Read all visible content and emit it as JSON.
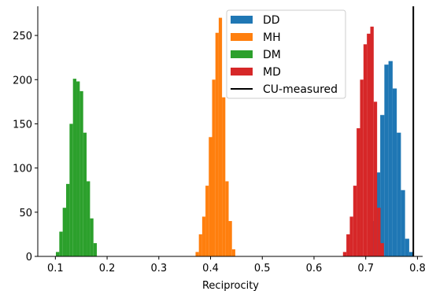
{
  "chart_data": {
    "type": "bar",
    "subtype": "histogram",
    "xlabel": "Reciprocity",
    "ylabel": "",
    "xlim": [
      0.066,
      0.81
    ],
    "ylim": [
      0,
      283
    ],
    "xticks": [
      "0.1",
      "0.2",
      "0.3",
      "0.4",
      "0.5",
      "0.6",
      "0.7",
      "0.8"
    ],
    "yticks": [
      "0",
      "50",
      "100",
      "150",
      "200",
      "250"
    ],
    "legend_position": "top-right",
    "series": [
      {
        "name": "DD",
        "color": "#1f77b4",
        "bin_start": 0.704,
        "bin_width": 0.008,
        "counts": [
          10,
          40,
          95,
          160,
          217,
          221,
          190,
          140,
          75,
          20,
          5
        ]
      },
      {
        "name": "MH",
        "color": "#ff7f0e",
        "bin_start": 0.371,
        "bin_width": 0.0064,
        "counts": [
          5,
          25,
          45,
          80,
          135,
          200,
          253,
          270,
          180,
          85,
          40,
          8
        ]
      },
      {
        "name": "DM",
        "color": "#2ca02c",
        "bin_start": 0.101,
        "bin_width": 0.0066,
        "counts": [
          5,
          28,
          55,
          82,
          150,
          201,
          198,
          187,
          140,
          85,
          43,
          15
        ]
      },
      {
        "name": "MD",
        "color": "#d62728",
        "bin_start": 0.656,
        "bin_width": 0.0066,
        "counts": [
          5,
          25,
          45,
          80,
          145,
          200,
          240,
          252,
          260,
          175,
          55,
          15
        ]
      },
      {
        "name": "CU-measured",
        "color": "#000000",
        "type": "vline",
        "x": 0.792
      }
    ]
  }
}
